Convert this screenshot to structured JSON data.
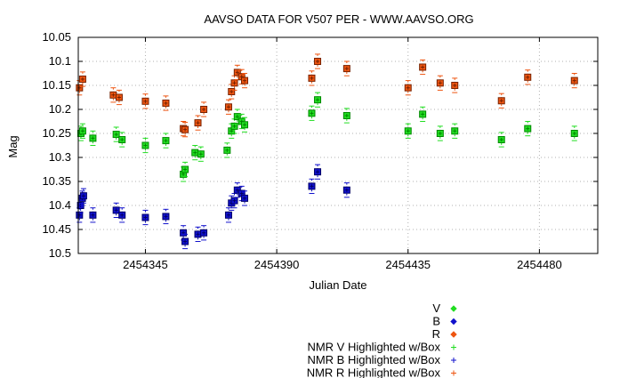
{
  "chart_data": {
    "type": "scatter",
    "title": "AAVSO DATA FOR V507 PER - WWW.AAVSO.ORG",
    "xlabel": "Julian Date",
    "ylabel": "Mag",
    "xlim": [
      2454322,
      2454500
    ],
    "ylim": [
      10.5,
      10.05
    ],
    "y_inverted": true,
    "grid": true,
    "legend_position": "bottom-right",
    "x_tick_values": [
      2454345,
      2454390,
      2454435,
      2454480
    ],
    "x_tick_labels": [
      "2454345",
      "2454390",
      "2454435",
      "2454480"
    ],
    "y_tick_values": [
      10.05,
      10.1,
      10.15,
      10.2,
      10.25,
      10.3,
      10.35,
      10.4,
      10.45,
      10.5
    ],
    "y_tick_labels": [
      "10.05",
      "10.1",
      "10.15",
      "10.2",
      "10.25",
      "10.3",
      "10.35",
      "10.4",
      "10.45",
      "10.5"
    ],
    "error": 0.015,
    "series": [
      {
        "name": "V",
        "color": "#22dd22",
        "box_color": "#008800",
        "points": [
          [
            2454322.9,
            10.25
          ],
          [
            2454323.5,
            10.245
          ],
          [
            2454327.0,
            10.26
          ],
          [
            2454335.0,
            10.252
          ],
          [
            2454337.0,
            10.263
          ],
          [
            2454345.0,
            10.275
          ],
          [
            2454352.0,
            10.265
          ],
          [
            2454358.0,
            10.335
          ],
          [
            2454358.6,
            10.325
          ],
          [
            2454362.0,
            10.29
          ],
          [
            2454364.0,
            10.293
          ],
          [
            2454373.0,
            10.285
          ],
          [
            2454374.5,
            10.245
          ],
          [
            2454375.5,
            10.235
          ],
          [
            2454376.5,
            10.215
          ],
          [
            2454378.0,
            10.225
          ],
          [
            2454379.0,
            10.232
          ],
          [
            2454402.0,
            10.208
          ],
          [
            2454404.0,
            10.18
          ],
          [
            2454414.0,
            10.213
          ],
          [
            2454435.0,
            10.245
          ],
          [
            2454440.0,
            10.21
          ],
          [
            2454446.0,
            10.25
          ],
          [
            2454451.0,
            10.245
          ],
          [
            2454467.0,
            10.263
          ],
          [
            2454476.0,
            10.24
          ],
          [
            2454492.0,
            10.25
          ]
        ]
      },
      {
        "name": "B",
        "color": "#1111cc",
        "box_color": "#000066",
        "points": [
          [
            2454322.4,
            10.42
          ],
          [
            2454322.8,
            10.4
          ],
          [
            2454323.4,
            10.385
          ],
          [
            2454323.8,
            10.38
          ],
          [
            2454327.0,
            10.42
          ],
          [
            2454335.0,
            10.41
          ],
          [
            2454337.0,
            10.42
          ],
          [
            2454345.0,
            10.425
          ],
          [
            2454352.0,
            10.423
          ],
          [
            2454358.0,
            10.457
          ],
          [
            2454358.6,
            10.475
          ],
          [
            2454363.0,
            10.46
          ],
          [
            2454365.0,
            10.457
          ],
          [
            2454373.5,
            10.42
          ],
          [
            2454374.5,
            10.395
          ],
          [
            2454375.5,
            10.39
          ],
          [
            2454376.5,
            10.368
          ],
          [
            2454378.0,
            10.375
          ],
          [
            2454379.0,
            10.385
          ],
          [
            2454402.0,
            10.36
          ],
          [
            2454404.0,
            10.33
          ],
          [
            2454414.0,
            10.368
          ]
        ]
      },
      {
        "name": "R",
        "color": "#ee5511",
        "box_color": "#772200",
        "points": [
          [
            2454322.4,
            10.155
          ],
          [
            2454323.5,
            10.137
          ],
          [
            2454334.0,
            10.17
          ],
          [
            2454336.0,
            10.175
          ],
          [
            2454345.0,
            10.183
          ],
          [
            2454352.0,
            10.187
          ],
          [
            2454358.0,
            10.24
          ],
          [
            2454358.6,
            10.242
          ],
          [
            2454363.0,
            10.228
          ],
          [
            2454365.0,
            10.2
          ],
          [
            2454373.5,
            10.195
          ],
          [
            2454374.5,
            10.163
          ],
          [
            2454375.5,
            10.145
          ],
          [
            2454376.5,
            10.123
          ],
          [
            2454378.0,
            10.132
          ],
          [
            2454379.0,
            10.14
          ],
          [
            2454402.0,
            10.135
          ],
          [
            2454404.0,
            10.1
          ],
          [
            2454414.0,
            10.115
          ],
          [
            2454435.0,
            10.155
          ],
          [
            2454440.0,
            10.112
          ],
          [
            2454446.0,
            10.145
          ],
          [
            2454451.0,
            10.15
          ],
          [
            2454467.0,
            10.182
          ],
          [
            2454476.0,
            10.133
          ],
          [
            2454492.0,
            10.14
          ]
        ]
      }
    ],
    "legend_entries": [
      {
        "label": "V",
        "symbol": "diamond",
        "color": "#22dd22"
      },
      {
        "label": "B",
        "symbol": "diamond",
        "color": "#1111cc"
      },
      {
        "label": "R",
        "symbol": "diamond",
        "color": "#ee5511"
      },
      {
        "label": "NMR V Highlighted w/Box",
        "symbol": "plus",
        "color": "#22dd22"
      },
      {
        "label": "NMR B Highlighted w/Box",
        "symbol": "plus",
        "color": "#1111cc"
      },
      {
        "label": "NMR R Highlighted w/Box",
        "symbol": "plus",
        "color": "#ee5511"
      }
    ]
  }
}
